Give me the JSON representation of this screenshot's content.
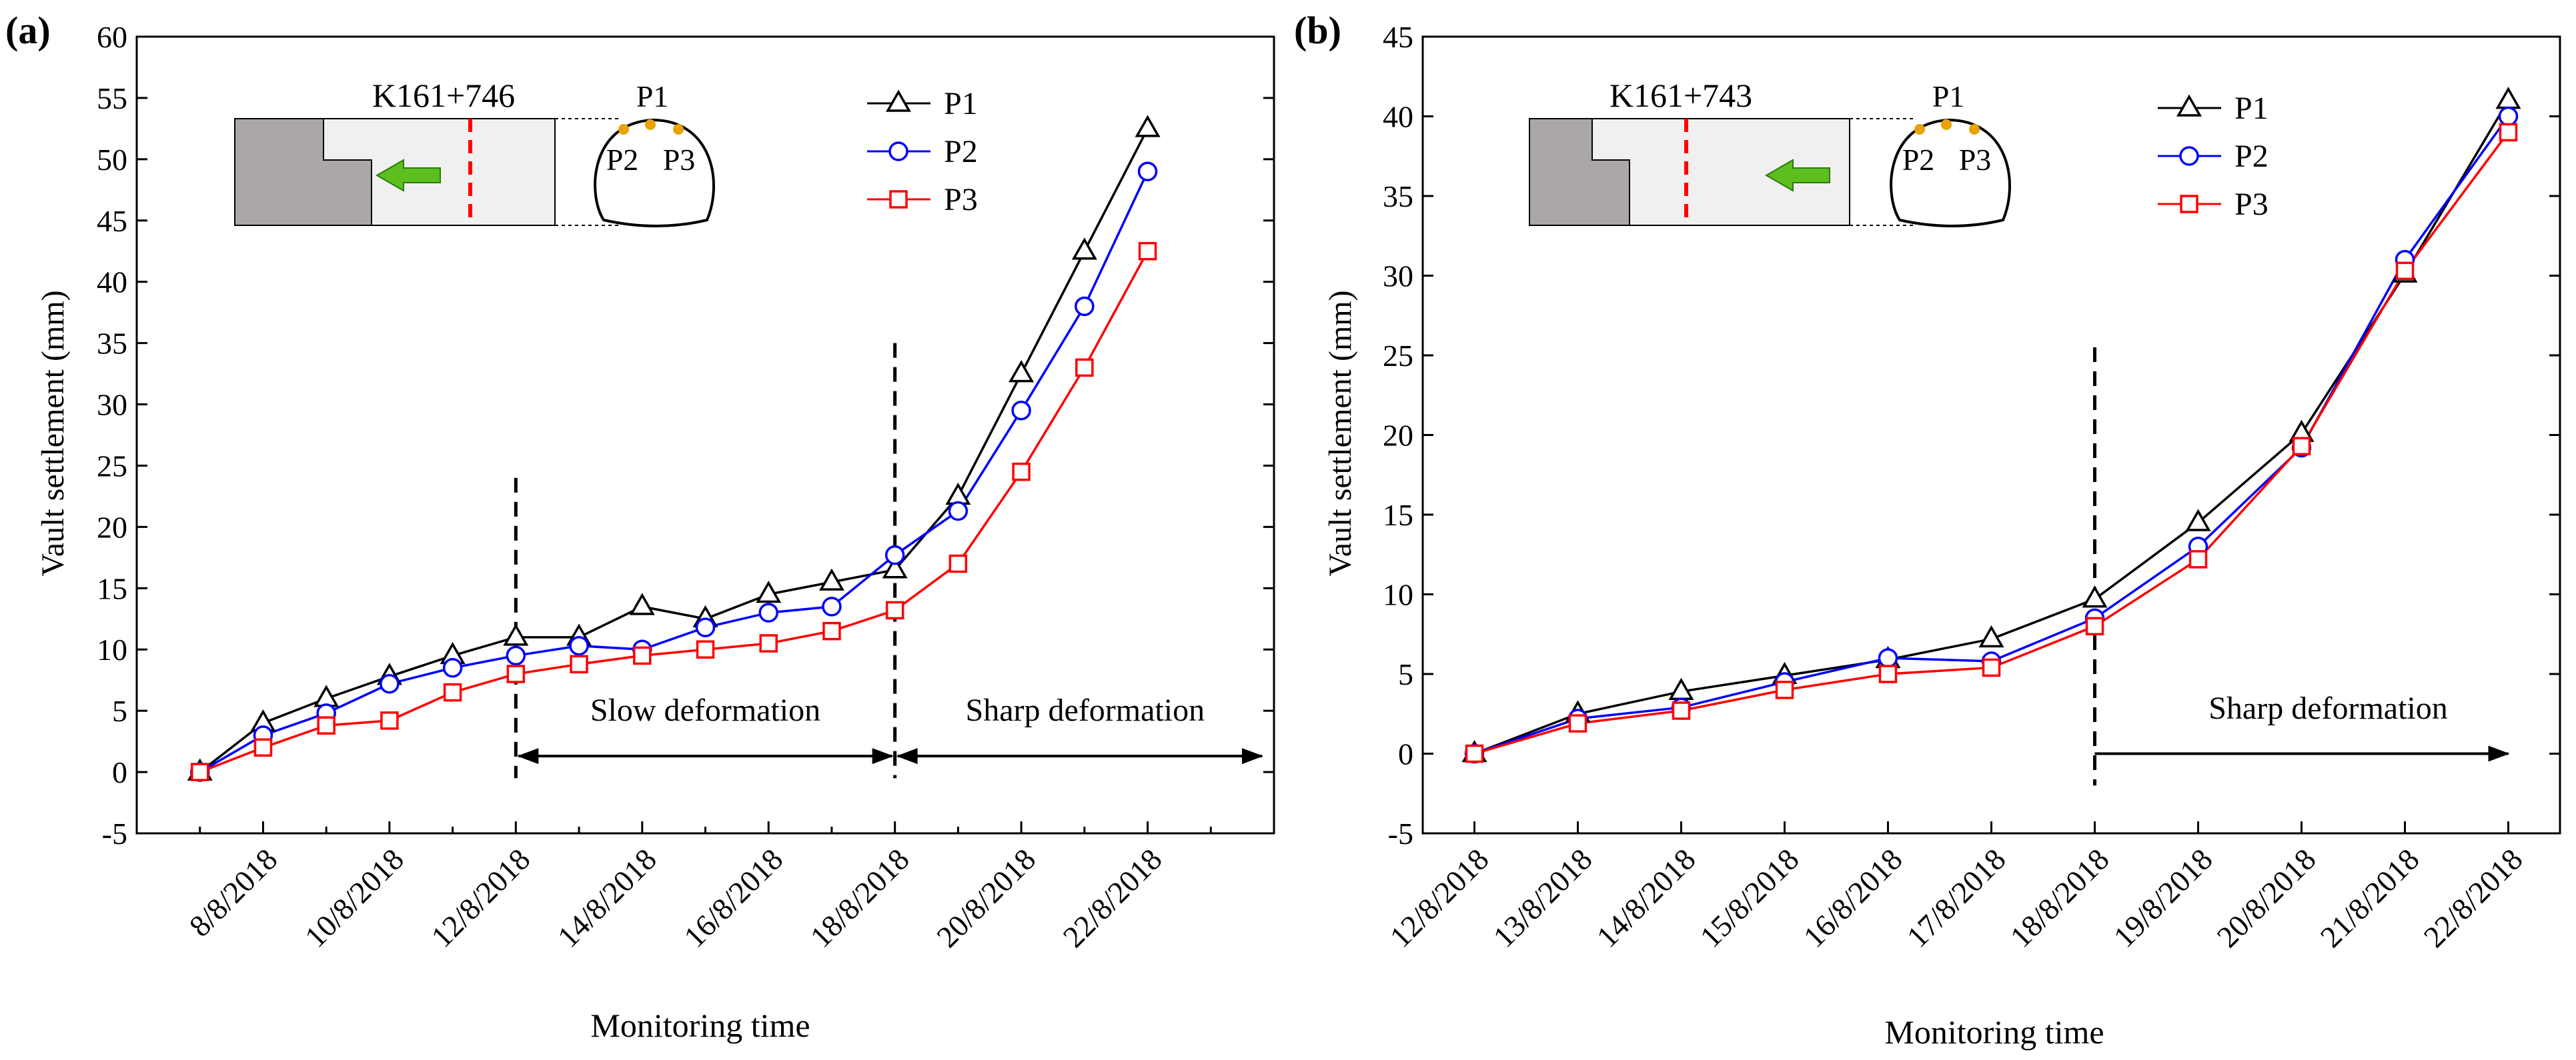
{
  "chart_data": [
    {
      "panel_label": "(a)",
      "type": "line",
      "xlabel": "Monitoring time",
      "ylabel": "Vault settlement (mm)",
      "ylim": [
        -5,
        60
      ],
      "yticks": [
        -5,
        0,
        5,
        10,
        15,
        20,
        25,
        30,
        35,
        40,
        45,
        50,
        55,
        60
      ],
      "x_index": [
        0,
        1,
        2,
        3,
        4,
        5,
        6,
        7,
        8,
        9,
        10,
        11,
        12,
        13,
        14,
        15,
        16,
        17,
        18
      ],
      "xtick_labels": [
        "8/8/2018",
        "10/8/2018",
        "12/8/2018",
        "14/8/2018",
        "16/8/2018",
        "18/8/2018",
        "20/8/2018",
        "22/8/2018"
      ],
      "xtick_index": [
        2,
        4,
        6,
        8,
        10,
        12,
        14,
        16
      ],
      "series": [
        {
          "name": "P1",
          "color": "#000000",
          "marker": "triangle",
          "values": [
            0,
            4,
            6,
            7.8,
            9.5,
            11,
            11,
            13.5,
            12.5,
            14.5,
            15.5,
            16.5,
            22.5,
            32.5,
            42.5,
            52.5
          ]
        },
        {
          "name": "P2",
          "color": "#0000ff",
          "marker": "circle",
          "values": [
            0,
            3,
            4.8,
            7.2,
            8.5,
            9.5,
            10.3,
            10,
            11.8,
            13,
            13.5,
            17.7,
            21.3,
            29.5,
            38,
            49
          ]
        },
        {
          "name": "P3",
          "color": "#ff0000",
          "marker": "square",
          "values": [
            0,
            2,
            3.8,
            4.2,
            6.5,
            8,
            8.8,
            9.5,
            10,
            10.5,
            11.5,
            13.2,
            17,
            24.5,
            33,
            42.5
          ]
        }
      ],
      "x_start_index": 1,
      "divider_indices": [
        6,
        12
      ],
      "annotations": {
        "station": "K161+746",
        "slow_label": "Slow deformation",
        "sharp_label": "Sharp deformation"
      }
    },
    {
      "panel_label": "(b)",
      "type": "line",
      "xlabel": "Monitoring time",
      "ylabel": "Vault settlement (mm)",
      "ylim": [
        -5,
        45
      ],
      "yticks": [
        -5,
        0,
        5,
        10,
        15,
        20,
        25,
        30,
        35,
        40,
        45
      ],
      "categories": [
        "12/8/2018",
        "13/8/2018",
        "14/8/2018",
        "15/8/2018",
        "16/8/2018",
        "17/8/2018",
        "18/8/2018",
        "19/8/2018",
        "20/8/2018",
        "21/8/2018",
        "22/8/2018"
      ],
      "series": [
        {
          "name": "P1",
          "color": "#000000",
          "marker": "triangle",
          "values": [
            0,
            2.5,
            3.9,
            4.9,
            5.9,
            7.2,
            9.7,
            14.5,
            20.1,
            30.1,
            41
          ]
        },
        {
          "name": "P2",
          "color": "#0000ff",
          "marker": "circle",
          "values": [
            0,
            2.2,
            2.9,
            4.5,
            6,
            5.8,
            8.5,
            13,
            19.2,
            31,
            40
          ]
        },
        {
          "name": "P3",
          "color": "#ff0000",
          "marker": "square",
          "values": [
            0,
            1.9,
            2.7,
            4,
            5,
            5.4,
            8,
            12.2,
            19.3,
            30.3,
            39
          ]
        }
      ],
      "divider_index": 6,
      "annotations": {
        "station": "K161+743",
        "sharp_label": "Sharp deformation"
      }
    }
  ],
  "schematic_labels": {
    "p1": "P1",
    "p2": "P2",
    "p3": "P3"
  },
  "colors": {
    "dashed_red": "#ff0000",
    "arrow_green": "#5cbf1f",
    "rock_gray": "#aba7a6",
    "tunnel_fill": "#f0f0f0",
    "marker_dot": "#e8a300"
  }
}
